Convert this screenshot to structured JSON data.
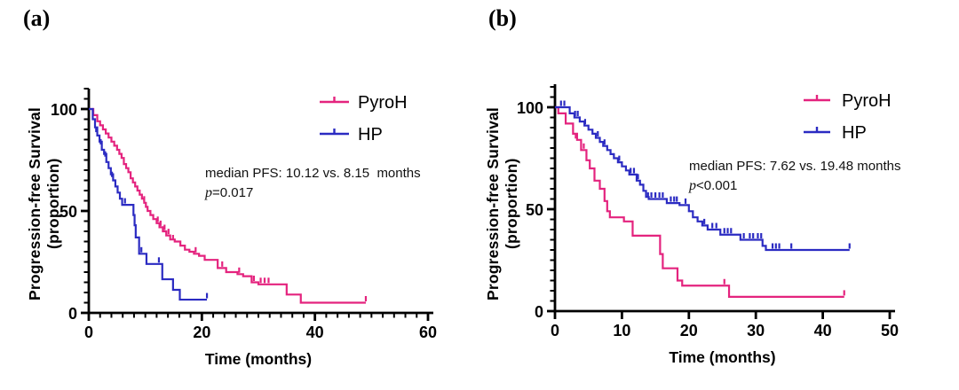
{
  "figure": {
    "panels": [
      {
        "id": "a",
        "label": "(a)",
        "x_title": "Time (months)",
        "y_title": "Progression-free Survival (proportion)",
        "annotation": {
          "line1": "median PFS: 10.12 vs. 8.15  months",
          "p": "p",
          "p_rest": "=0.017"
        }
      },
      {
        "id": "b",
        "label": "(b)",
        "x_title": "Time (months)",
        "y_title": "Progression-free Survival (proportion)",
        "annotation": {
          "line1": "median PFS: 7.62 vs. 19.48 months",
          "p": "p",
          "p_rest": "<0.001"
        }
      }
    ]
  },
  "chart_data": [
    {
      "type": "line",
      "subtype": "kaplan-meier-step",
      "panel": "a",
      "xlabel": "Time (months)",
      "ylabel": "Progression-free Survival (proportion)",
      "xlim": [
        0,
        60
      ],
      "ylim": [
        0,
        110
      ],
      "x_major_ticks": [
        0,
        20,
        40,
        60
      ],
      "x_minor_step": 2,
      "y_major_ticks": [
        0,
        50,
        100
      ],
      "y_minor_step": 5,
      "grid": false,
      "legend_position": "upper right",
      "annotations": [
        "median PFS: 10.12 vs. 8.15 months",
        "p=0.017"
      ],
      "series": [
        {
          "name": "PyroH",
          "color": "#E4237E",
          "steps": [
            [
              0,
              100
            ],
            [
              0.8,
              97
            ],
            [
              1.5,
              94
            ],
            [
              2,
              92
            ],
            [
              2.5,
              90
            ],
            [
              3,
              88
            ],
            [
              3.5,
              86
            ],
            [
              4,
              84
            ],
            [
              4.5,
              82
            ],
            [
              5,
              80
            ],
            [
              5.4,
              78
            ],
            [
              5.8,
              76
            ],
            [
              6.2,
              73
            ],
            [
              6.6,
              71
            ],
            [
              7,
              69
            ],
            [
              7.4,
              66
            ],
            [
              7.8,
              64
            ],
            [
              8.2,
              62
            ],
            [
              8.6,
              60
            ],
            [
              9,
              58
            ],
            [
              9.4,
              56
            ],
            [
              9.8,
              54
            ],
            [
              10.1,
              52
            ],
            [
              10.4,
              50
            ],
            [
              10.9,
              48
            ],
            [
              11.4,
              46
            ],
            [
              12,
              44
            ],
            [
              12.5,
              42
            ],
            [
              13.1,
              40
            ],
            [
              13.7,
              38
            ],
            [
              14.4,
              36
            ],
            [
              15.2,
              35
            ],
            [
              16.2,
              33
            ],
            [
              17,
              31
            ],
            [
              17.8,
              30
            ],
            [
              18.6,
              29
            ],
            [
              19.5,
              28
            ],
            [
              20.5,
              26
            ],
            [
              22.8,
              22
            ],
            [
              24.3,
              20
            ],
            [
              26.3,
              19
            ],
            [
              27.3,
              18
            ],
            [
              28.8,
              15
            ],
            [
              30,
              14
            ],
            [
              35,
              9
            ],
            [
              37.5,
              5
            ],
            [
              49,
              5
            ]
          ],
          "censor_ticks": [
            [
              9.8,
              54
            ],
            [
              12.2,
              44
            ],
            [
              12.7,
              42
            ],
            [
              13.4,
              40
            ],
            [
              14.1,
              38
            ],
            [
              14.9,
              35
            ],
            [
              18.9,
              29
            ],
            [
              23.6,
              22
            ],
            [
              26.6,
              19
            ],
            [
              29.2,
              15
            ],
            [
              30.4,
              14
            ],
            [
              31.1,
              14
            ],
            [
              31.8,
              14
            ],
            [
              49,
              5
            ]
          ]
        },
        {
          "name": "HP",
          "color": "#2B2BC2",
          "steps": [
            [
              0,
              100
            ],
            [
              0.7,
              95
            ],
            [
              1.1,
              91
            ],
            [
              1.5,
              87
            ],
            [
              1.9,
              84
            ],
            [
              2.3,
              80
            ],
            [
              2.7,
              78
            ],
            [
              3.1,
              74
            ],
            [
              3.5,
              71
            ],
            [
              3.9,
              68
            ],
            [
              4.3,
              65
            ],
            [
              4.7,
              62
            ],
            [
              5.1,
              59
            ],
            [
              5.5,
              56
            ],
            [
              5.9,
              53
            ],
            [
              7.9,
              48
            ],
            [
              8.1,
              43
            ],
            [
              8.3,
              37
            ],
            [
              8.9,
              29
            ],
            [
              10.2,
              24
            ],
            [
              13,
              16.5
            ],
            [
              14.9,
              11.3
            ],
            [
              16.1,
              6.5
            ],
            [
              20.9,
              6.5
            ]
          ],
          "censor_ticks": [
            [
              1.3,
              88
            ],
            [
              2.1,
              82
            ],
            [
              2.9,
              76
            ],
            [
              4.1,
              66
            ],
            [
              6.4,
              53
            ],
            [
              9.3,
              29
            ],
            [
              12.4,
              24
            ],
            [
              20.9,
              6.5
            ]
          ]
        }
      ]
    },
    {
      "type": "line",
      "subtype": "kaplan-meier-step",
      "panel": "b",
      "xlabel": "Time (months)",
      "ylabel": "Progression-free Survival (proportion)",
      "xlim": [
        0,
        50
      ],
      "ylim": [
        0,
        110
      ],
      "x_major_ticks": [
        0,
        10,
        20,
        30,
        40,
        50
      ],
      "x_minor_step": null,
      "y_major_ticks": [
        0,
        50,
        100
      ],
      "y_minor_step": 5,
      "grid": false,
      "legend_position": "upper right",
      "annotations": [
        "median PFS: 7.62 vs. 19.48 months",
        "p<0.001"
      ],
      "series": [
        {
          "name": "PyroH",
          "color": "#E4237E",
          "steps": [
            [
              0,
              100
            ],
            [
              0.5,
              97
            ],
            [
              1.6,
              92
            ],
            [
              2.7,
              87
            ],
            [
              3.3,
              84
            ],
            [
              3.9,
              79
            ],
            [
              4.7,
              74
            ],
            [
              5.2,
              70
            ],
            [
              5.9,
              64
            ],
            [
              6.7,
              60
            ],
            [
              7.4,
              54
            ],
            [
              7.8,
              49
            ],
            [
              8.2,
              46
            ],
            [
              10.3,
              44
            ],
            [
              11.6,
              37
            ],
            [
              15.7,
              28
            ],
            [
              16.1,
              21
            ],
            [
              18.3,
              15
            ],
            [
              19,
              12.5
            ],
            [
              26,
              7
            ],
            [
              43.2,
              7
            ]
          ],
          "censor_ticks": [
            [
              3.1,
              84
            ],
            [
              4.3,
              79
            ],
            [
              25.3,
              12.5
            ],
            [
              43.2,
              7
            ]
          ]
        },
        {
          "name": "HP",
          "color": "#2B2BC2",
          "steps": [
            [
              0,
              100
            ],
            [
              2.2,
              97
            ],
            [
              2.9,
              95
            ],
            [
              3.7,
              93
            ],
            [
              4.4,
              91
            ],
            [
              5,
              89
            ],
            [
              5.6,
              87
            ],
            [
              6.1,
              85
            ],
            [
              6.7,
              83
            ],
            [
              7.2,
              81
            ],
            [
              7.8,
              79
            ],
            [
              8.3,
              77
            ],
            [
              8.8,
              75
            ],
            [
              9.4,
              73
            ],
            [
              10,
              71
            ],
            [
              10.6,
              69
            ],
            [
              11.1,
              67
            ],
            [
              12.2,
              64
            ],
            [
              12.7,
              62
            ],
            [
              13.2,
              59
            ],
            [
              13.6,
              56
            ],
            [
              14,
              55
            ],
            [
              16.7,
              53
            ],
            [
              18.6,
              52
            ],
            [
              20,
              49
            ],
            [
              20.6,
              46
            ],
            [
              21.3,
              44
            ],
            [
              22,
              42
            ],
            [
              22.8,
              40
            ],
            [
              24.7,
              37.5
            ],
            [
              27.7,
              35
            ],
            [
              31,
              32
            ],
            [
              31.5,
              30
            ],
            [
              44,
              30
            ]
          ],
          "censor_ticks": [
            [
              0.9,
              100
            ],
            [
              1.4,
              100
            ],
            [
              3,
              95
            ],
            [
              3.4,
              95
            ],
            [
              4.5,
              91
            ],
            [
              6.4,
              85
            ],
            [
              7.4,
              81
            ],
            [
              9.6,
              73
            ],
            [
              11.3,
              67
            ],
            [
              11.8,
              67
            ],
            [
              12.4,
              64
            ],
            [
              13.9,
              55
            ],
            [
              14.4,
              55
            ],
            [
              15,
              55
            ],
            [
              15.6,
              55
            ],
            [
              16.1,
              55
            ],
            [
              17.3,
              53
            ],
            [
              17.8,
              53
            ],
            [
              18.2,
              53
            ],
            [
              19.5,
              52
            ],
            [
              22.3,
              42
            ],
            [
              23.5,
              40
            ],
            [
              24.1,
              40
            ],
            [
              25.3,
              37.5
            ],
            [
              25.8,
              37.5
            ],
            [
              26.3,
              37.5
            ],
            [
              28.2,
              35
            ],
            [
              29.1,
              35
            ],
            [
              29.6,
              35
            ],
            [
              30.3,
              35
            ],
            [
              30.8,
              35
            ],
            [
              32.5,
              30
            ],
            [
              33,
              30
            ],
            [
              33.5,
              30
            ],
            [
              35.3,
              30
            ],
            [
              44,
              30
            ]
          ]
        }
      ]
    }
  ]
}
